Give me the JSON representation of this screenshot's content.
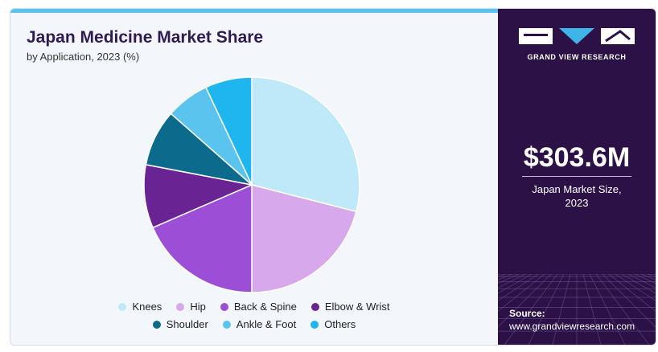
{
  "header": {
    "title": "Japan Medicine Market Share",
    "subtitle": "by Application, 2023 (%)"
  },
  "chart_data": {
    "type": "pie",
    "title": "Japan Medicine Market Share",
    "subtitle": "by Application, 2023 (%)",
    "categories": [
      "Knees",
      "Hip",
      "Back & Spine",
      "Elbow & Wrist",
      "Shoulder",
      "Ankle & Foot",
      "Others"
    ],
    "values": [
      29.0,
      21.0,
      18.5,
      9.5,
      8.5,
      6.5,
      7.0
    ],
    "colors": [
      "#bfe8f9",
      "#d7a8ec",
      "#9c4ed6",
      "#6a2393",
      "#0c6a8c",
      "#5bc4ee",
      "#1fb5ef"
    ],
    "legend_position": "bottom"
  },
  "side_panel": {
    "brand": "GRAND VIEW RESEARCH",
    "market_value": "$303.6M",
    "market_label_line1": "Japan Market Size,",
    "market_label_line2": "2023",
    "source_label": "Source:",
    "source_url": "www.grandviewresearch.com",
    "background": "#2c1147"
  }
}
